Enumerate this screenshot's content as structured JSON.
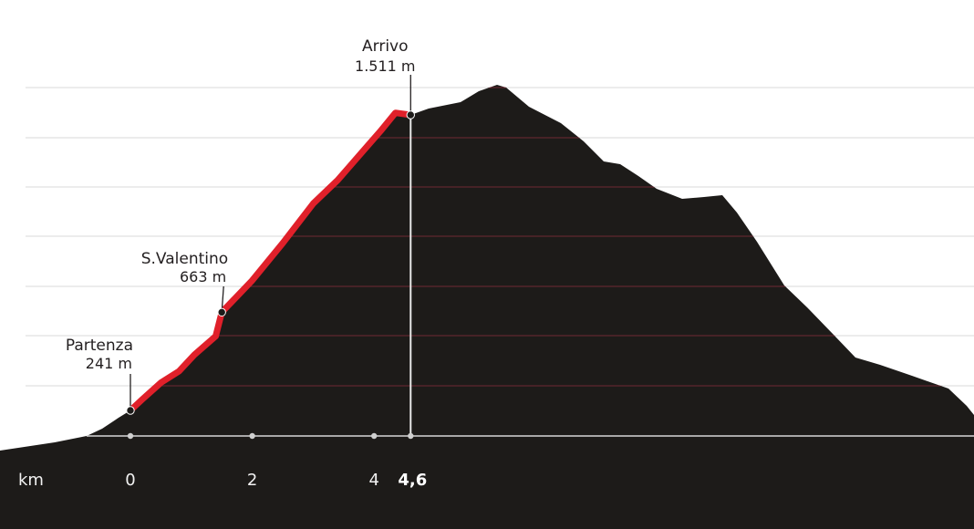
{
  "chart_data": {
    "type": "area",
    "x_unit_label": "km",
    "x_ticks": [
      "0",
      "2",
      "4",
      "4,6"
    ],
    "x_tick_values": [
      0,
      2,
      4,
      4.6
    ],
    "route": [
      {
        "km": 0.0,
        "elev": 241
      },
      {
        "km": 0.2,
        "elev": 290
      },
      {
        "km": 0.5,
        "elev": 360
      },
      {
        "km": 0.8,
        "elev": 410
      },
      {
        "km": 1.05,
        "elev": 480
      },
      {
        "km": 1.4,
        "elev": 560
      },
      {
        "km": 1.5,
        "elev": 663
      },
      {
        "km": 2.0,
        "elev": 800
      },
      {
        "km": 2.5,
        "elev": 960
      },
      {
        "km": 3.0,
        "elev": 1130
      },
      {
        "km": 3.4,
        "elev": 1230
      },
      {
        "km": 3.8,
        "elev": 1350
      },
      {
        "km": 4.1,
        "elev": 1440
      },
      {
        "km": 4.35,
        "elev": 1520
      },
      {
        "km": 4.6,
        "elev": 1511
      }
    ],
    "markers": [
      {
        "key": "start",
        "name": "Partenza",
        "elevation_label": "241 m",
        "km": 0.0,
        "elev": 241
      },
      {
        "key": "mid",
        "name": "S.Valentino",
        "elevation_label": "663 m",
        "km": 1.5,
        "elev": 663
      },
      {
        "key": "finish",
        "name": "Arrivo",
        "elevation_label": "1.511 m",
        "km": 4.6,
        "elev": 1511
      }
    ],
    "colors": {
      "mountain": "#1d1b19",
      "route": "#e0202a",
      "gridlines": "#d9d9d9",
      "gridlines_on_mountain": "#6e2a33",
      "axis": "#d8d8d8",
      "marker": "#1d1b19"
    },
    "grid": true
  }
}
